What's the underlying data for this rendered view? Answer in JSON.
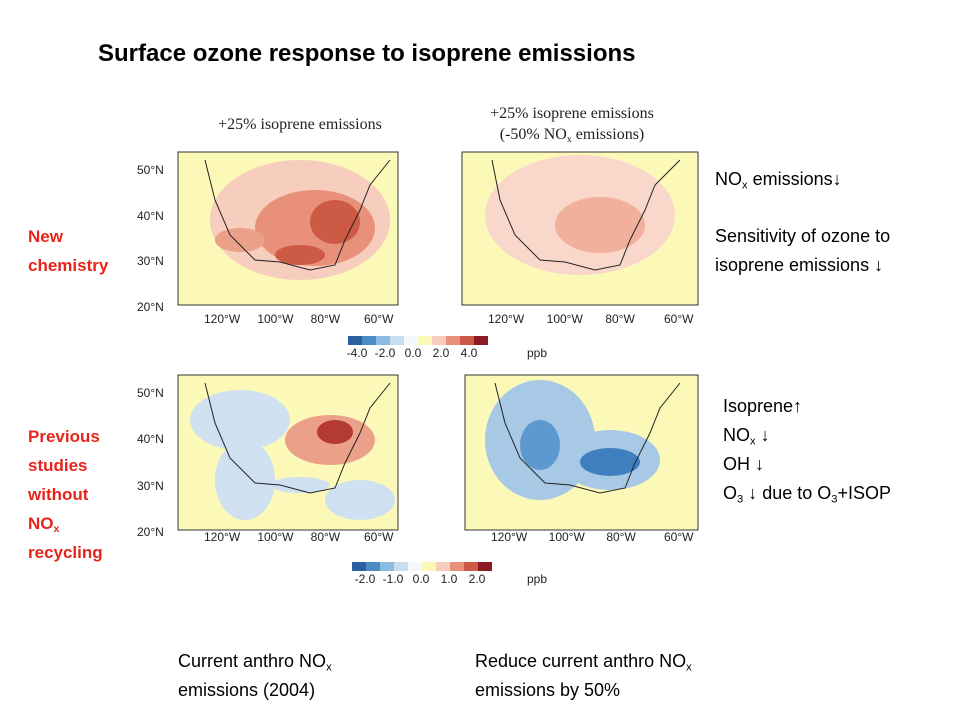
{
  "title": "Surface ozone response to isoprene emissions",
  "maps": {
    "lat_labels": [
      "50°N",
      "40°N",
      "30°N",
      "20°N"
    ],
    "lon_labels": [
      "120°W",
      "100°W",
      "80°W",
      "60°W"
    ]
  },
  "top_row": {
    "row_label": [
      [
        "New"
      ],
      [
        "chemistry"
      ]
    ],
    "left_title": "+25% isoprene emissions",
    "right_title": [
      [
        "+25% isoprene emissions"
      ],
      [
        "(-50% NO",
        {
          "sub": "x"
        },
        " emissions)"
      ]
    ],
    "colorbar": {
      "ticks": [
        "-4.0",
        "-2.0",
        "0.0",
        "2.0",
        "4.0"
      ],
      "unit": "ppb"
    },
    "nox_note": [
      [
        "NO",
        {
          "sub": "x"
        },
        " emissions↓"
      ]
    ],
    "sensitivity_note": [
      [
        "Sensitivity of ozone to"
      ],
      [
        "isoprene emissions ↓"
      ]
    ]
  },
  "bottom_row": {
    "row_label": [
      [
        "Previous"
      ],
      [
        "studies"
      ],
      [
        "without"
      ],
      [
        "NO",
        {
          "sub": "x"
        }
      ],
      [
        "recycling"
      ]
    ],
    "colorbar": {
      "ticks": [
        "-2.0",
        "-1.0",
        "0.0",
        "1.0",
        "2.0"
      ],
      "unit": "ppb"
    },
    "note": [
      [
        "Isoprene↑"
      ],
      [
        "NO",
        {
          "sub": "x"
        },
        " ↓"
      ],
      [
        "OH ↓"
      ],
      [
        "O",
        {
          "sub": "3"
        },
        " ↓  due to O",
        {
          "sub": "3"
        },
        "+ISOP"
      ]
    ]
  },
  "footer": {
    "left": [
      [
        "Current anthro NO",
        {
          "sub": "x"
        }
      ],
      [
        "emissions (2004)"
      ]
    ],
    "right": [
      [
        "Reduce current anthro NO",
        {
          "sub": "x"
        }
      ],
      [
        "emissions by 50%"
      ]
    ]
  }
}
